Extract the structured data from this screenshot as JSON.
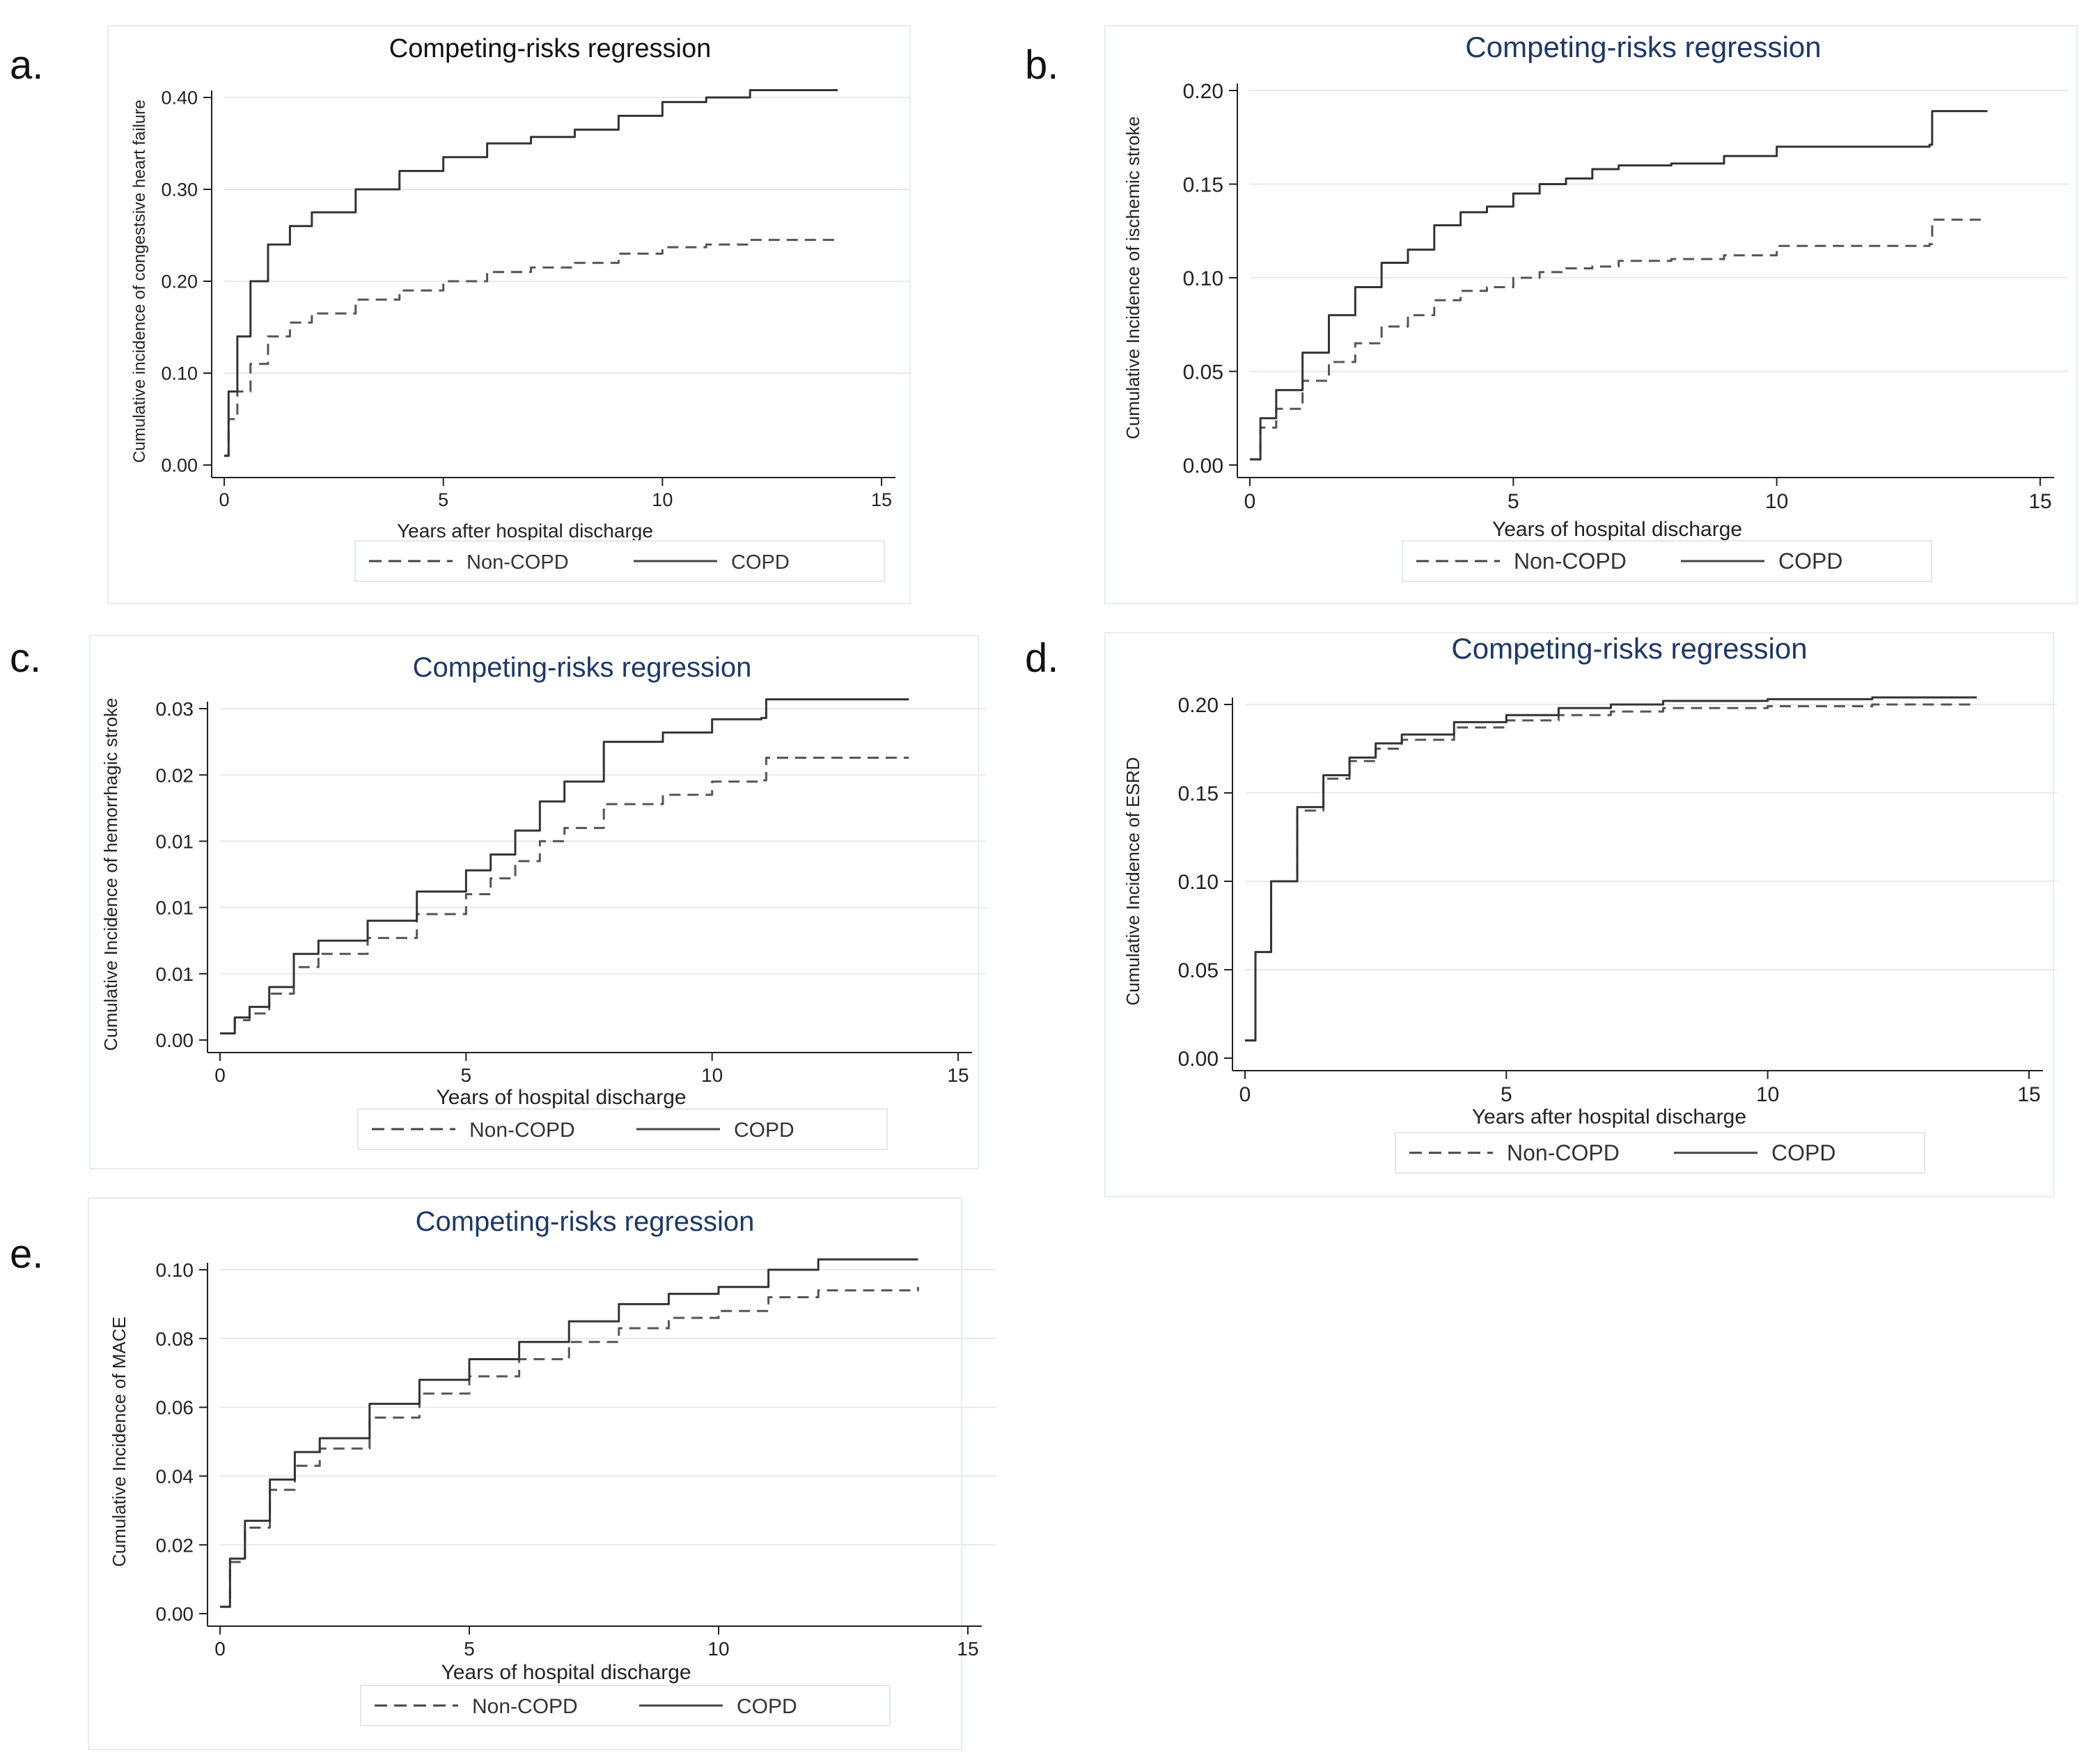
{
  "panels": [
    {
      "letter": "a.",
      "chart_data": {
        "type": "line",
        "title": "Competing-risks regression",
        "title_color": "#111111",
        "xlabel": "Years after hospital discharge",
        "ylabel": "Cumulative incidence of congestsive heart failure",
        "xlim": [
          0,
          15
        ],
        "ylim": [
          0,
          0.4
        ],
        "xticks": [
          0,
          5,
          10,
          15
        ],
        "yticks": [
          0,
          0.1,
          0.2,
          0.3,
          0.4
        ],
        "ytick_labels": [
          "0.00",
          "0.10",
          "0.20",
          "0.30",
          "0.40"
        ],
        "grid": true,
        "legend_position": "bottom",
        "series": [
          {
            "name": "Non-COPD",
            "style": "dashed",
            "x": [
              0,
              0.1,
              0.3,
              0.6,
              1,
              1.5,
              2,
              3,
              4,
              5,
              6,
              7,
              8,
              9,
              10,
              11,
              12,
              14
            ],
            "y": [
              0.01,
              0.05,
              0.08,
              0.11,
              0.14,
              0.155,
              0.165,
              0.18,
              0.19,
              0.2,
              0.21,
              0.215,
              0.22,
              0.23,
              0.237,
              0.24,
              0.245,
              0.245
            ]
          },
          {
            "name": "COPD",
            "style": "solid",
            "x": [
              0,
              0.1,
              0.3,
              0.6,
              1,
              1.5,
              2,
              3,
              4,
              5,
              6,
              7,
              8,
              9,
              10,
              11,
              12,
              14
            ],
            "y": [
              0.01,
              0.08,
              0.14,
              0.2,
              0.24,
              0.26,
              0.275,
              0.3,
              0.32,
              0.335,
              0.35,
              0.357,
              0.365,
              0.38,
              0.395,
              0.4,
              0.408,
              0.408
            ]
          }
        ]
      }
    },
    {
      "letter": "b.",
      "chart_data": {
        "type": "line",
        "title": "Competing-risks regression",
        "title_color": "#1f3864",
        "xlabel": "Years of hospital discharge",
        "ylabel": "Cumulative Incidence of ischemic stroke",
        "xlim": [
          0,
          15
        ],
        "ylim": [
          0,
          0.2
        ],
        "xticks": [
          0,
          5,
          10,
          15
        ],
        "yticks": [
          0,
          0.05,
          0.1,
          0.15,
          0.2
        ],
        "ytick_labels": [
          "0.00",
          "0.05",
          "0.10",
          "0.15",
          "0.20"
        ],
        "grid": true,
        "legend_position": "bottom",
        "series": [
          {
            "name": "Non-COPD",
            "style": "dashed",
            "x": [
              0,
              0.2,
              0.5,
              1,
              1.5,
              2,
              2.5,
              3,
              3.5,
              4,
              4.5,
              5,
              5.5,
              6,
              6.5,
              7,
              8,
              9,
              10,
              12.9,
              12.95,
              14
            ],
            "y": [
              0.003,
              0.02,
              0.03,
              0.045,
              0.055,
              0.065,
              0.074,
              0.08,
              0.088,
              0.093,
              0.095,
              0.1,
              0.103,
              0.105,
              0.106,
              0.109,
              0.11,
              0.112,
              0.117,
              0.118,
              0.131,
              0.131
            ]
          },
          {
            "name": "COPD",
            "style": "solid",
            "x": [
              0,
              0.2,
              0.5,
              1,
              1.5,
              2,
              2.5,
              3,
              3.5,
              4,
              4.5,
              5,
              5.5,
              6,
              6.5,
              7,
              8,
              9,
              10,
              12.9,
              12.95,
              14
            ],
            "y": [
              0.003,
              0.025,
              0.04,
              0.06,
              0.08,
              0.095,
              0.108,
              0.115,
              0.128,
              0.135,
              0.138,
              0.145,
              0.15,
              0.153,
              0.158,
              0.16,
              0.161,
              0.165,
              0.17,
              0.171,
              0.189,
              0.189
            ]
          }
        ]
      }
    },
    {
      "letter": "c.",
      "chart_data": {
        "type": "line",
        "title": "Competing-risks regression",
        "title_color": "#1f3864",
        "xlabel": "Years of hospital discharge",
        "ylabel": "Cumulative Incidence of hemorrhagic stroke",
        "xlim": [
          0,
          15
        ],
        "ylim": [
          0,
          0.025
        ],
        "xticks": [
          0,
          5,
          10,
          15
        ],
        "yticks": [
          0,
          0.005,
          0.01,
          0.015,
          0.02,
          0.025
        ],
        "ytick_labels": [
          "0.00",
          "0.01",
          "0.01",
          "0.01",
          "0.02",
          "0.03"
        ],
        "grid": true,
        "legend_position": "bottom",
        "series": [
          {
            "name": "Non-COPD",
            "style": "dashed",
            "x": [
              0,
              0.3,
              0.6,
              1,
              1.5,
              2,
              3,
              4,
              5,
              5.5,
              6,
              6.5,
              7,
              7.8,
              9,
              10,
              11,
              11.1,
              14
            ],
            "y": [
              0.0005,
              0.0015,
              0.002,
              0.0035,
              0.0055,
              0.0065,
              0.0077,
              0.0095,
              0.011,
              0.0122,
              0.0135,
              0.015,
              0.016,
              0.0178,
              0.0185,
              0.0195,
              0.0196,
              0.0213,
              0.0213
            ]
          },
          {
            "name": "COPD",
            "style": "solid",
            "x": [
              0,
              0.3,
              0.6,
              1,
              1.5,
              2,
              3,
              4,
              5,
              5.5,
              6,
              6.5,
              7,
              7.8,
              9,
              10,
              11,
              11.1,
              14
            ],
            "y": [
              0.0005,
              0.0017,
              0.0025,
              0.004,
              0.0065,
              0.0075,
              0.009,
              0.0112,
              0.0128,
              0.014,
              0.0158,
              0.018,
              0.0195,
              0.0225,
              0.0232,
              0.0242,
              0.0243,
              0.0257,
              0.0257
            ]
          }
        ]
      }
    },
    {
      "letter": "d.",
      "chart_data": {
        "type": "line",
        "title": "Competing-risks regression",
        "title_color": "#1f3864",
        "xlabel": "Years after hospital discharge",
        "ylabel": "Cumulative Incidence of ESRD",
        "xlim": [
          0,
          15
        ],
        "ylim": [
          0,
          0.2
        ],
        "xticks": [
          0,
          5,
          10,
          15
        ],
        "yticks": [
          0,
          0.05,
          0.1,
          0.15,
          0.2
        ],
        "ytick_labels": [
          "0.00",
          "0.05",
          "0.10",
          "0.15",
          "0.20"
        ],
        "grid": true,
        "legend_position": "bottom",
        "series": [
          {
            "name": "Non-COPD",
            "style": "dashed",
            "x": [
              0,
              0.2,
              0.5,
              1,
              1.5,
              2,
              2.5,
              3,
              4,
              5,
              6,
              7,
              8,
              10,
              12,
              14
            ],
            "y": [
              0.01,
              0.06,
              0.1,
              0.14,
              0.158,
              0.168,
              0.175,
              0.18,
              0.187,
              0.191,
              0.194,
              0.196,
              0.198,
              0.199,
              0.2,
              0.2
            ]
          },
          {
            "name": "COPD",
            "style": "solid",
            "x": [
              0,
              0.2,
              0.5,
              1,
              1.5,
              2,
              2.5,
              3,
              4,
              5,
              6,
              7,
              8,
              10,
              12,
              14
            ],
            "y": [
              0.01,
              0.06,
              0.1,
              0.142,
              0.16,
              0.17,
              0.178,
              0.183,
              0.19,
              0.194,
              0.198,
              0.2,
              0.202,
              0.203,
              0.204,
              0.204
            ]
          }
        ]
      }
    },
    {
      "letter": "e.",
      "chart_data": {
        "type": "line",
        "title": "Competing-risks regression",
        "title_color": "#1f3864",
        "xlabel": "Years of hospital discharge",
        "ylabel": "Cumulative Incidence of MACE",
        "xlim": [
          0,
          15
        ],
        "ylim": [
          0,
          0.1
        ],
        "xticks": [
          0,
          5,
          10,
          15
        ],
        "yticks": [
          0,
          0.02,
          0.04,
          0.06,
          0.08,
          0.1
        ],
        "ytick_labels": [
          "0.00",
          "0.02",
          "0.04",
          "0.06",
          "0.08",
          "0.10"
        ],
        "grid": true,
        "legend_position": "bottom",
        "series": [
          {
            "name": "Non-COPD",
            "style": "dashed",
            "x": [
              0,
              0.2,
              0.5,
              1,
              1.5,
              2,
              3,
              4,
              5,
              6,
              7,
              8,
              9,
              10,
              11,
              12,
              14
            ],
            "y": [
              0.002,
              0.015,
              0.025,
              0.036,
              0.043,
              0.048,
              0.057,
              0.064,
              0.069,
              0.074,
              0.079,
              0.083,
              0.086,
              0.088,
              0.092,
              0.094,
              0.095
            ]
          },
          {
            "name": "COPD",
            "style": "solid",
            "x": [
              0,
              0.2,
              0.5,
              1,
              1.5,
              2,
              3,
              4,
              5,
              6,
              7,
              8,
              9,
              10,
              11,
              12,
              14
            ],
            "y": [
              0.002,
              0.016,
              0.027,
              0.039,
              0.047,
              0.051,
              0.061,
              0.068,
              0.074,
              0.079,
              0.085,
              0.09,
              0.093,
              0.095,
              0.1,
              0.103,
              0.103
            ]
          }
        ]
      }
    }
  ]
}
